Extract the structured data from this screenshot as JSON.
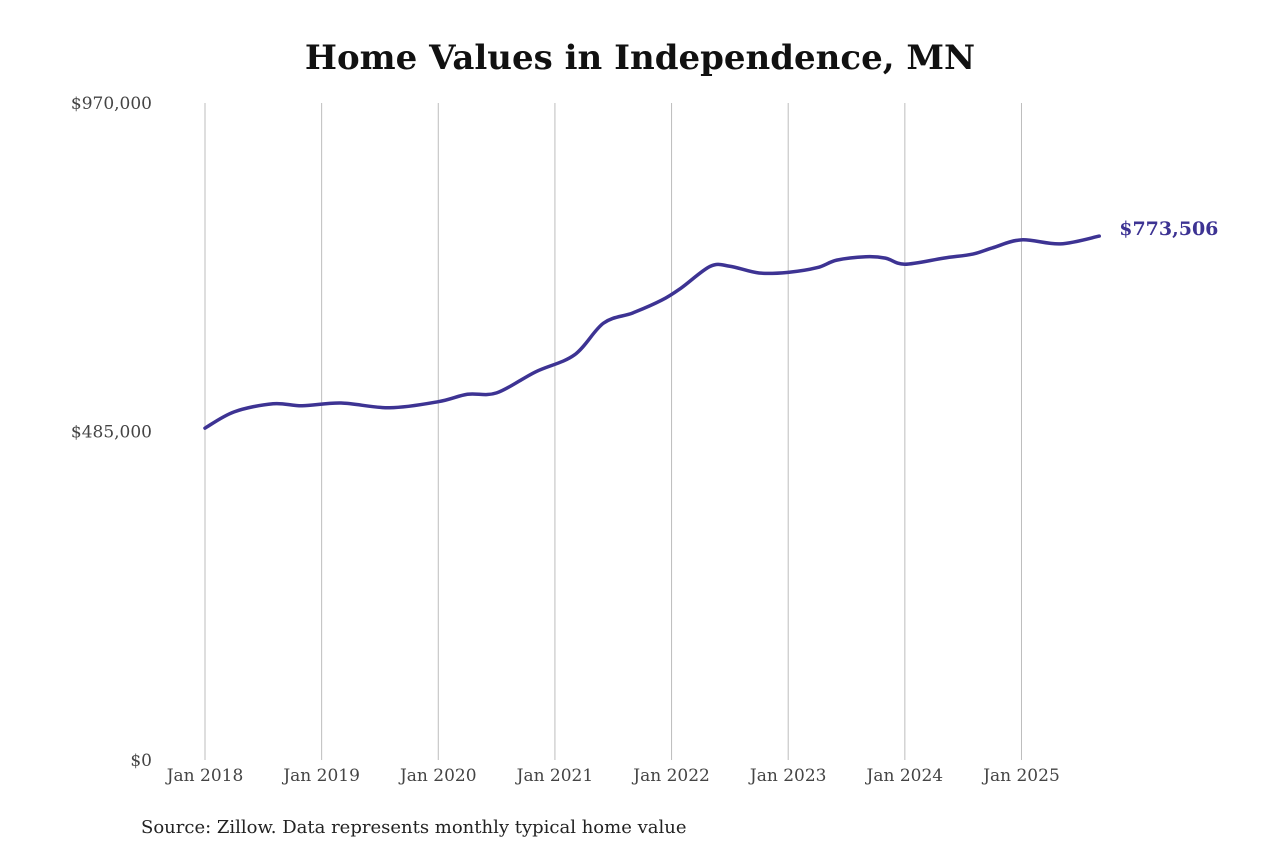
{
  "chart_data": {
    "type": "line",
    "title": "Home Values in Independence, MN",
    "source": "Source: Zillow. Data represents monthly typical home value",
    "xlabel": "",
    "ylabel": "",
    "ylim": [
      0,
      970000
    ],
    "y_ticks": [
      {
        "value": 0,
        "label": "$0"
      },
      {
        "value": 485000,
        "label": "$485,000"
      },
      {
        "value": 970000,
        "label": "$970,000"
      }
    ],
    "x_ticks": [
      {
        "date": "2018-01",
        "label": "Jan 2018"
      },
      {
        "date": "2019-01",
        "label": "Jan 2019"
      },
      {
        "date": "2020-01",
        "label": "Jan 2020"
      },
      {
        "date": "2021-01",
        "label": "Jan 2021"
      },
      {
        "date": "2022-01",
        "label": "Jan 2022"
      },
      {
        "date": "2023-01",
        "label": "Jan 2023"
      },
      {
        "date": "2024-01",
        "label": "Jan 2024"
      },
      {
        "date": "2025-01",
        "label": "Jan 2025"
      }
    ],
    "grid": "vertical",
    "line_color": "#3d3393",
    "end_label": "$773,506",
    "points": [
      {
        "date": "2018-01",
        "value": 490000
      },
      {
        "date": "2018-04",
        "value": 514000
      },
      {
        "date": "2018-08",
        "value": 526000
      },
      {
        "date": "2018-11",
        "value": 523000
      },
      {
        "date": "2019-03",
        "value": 527000
      },
      {
        "date": "2019-08",
        "value": 520000
      },
      {
        "date": "2020-01",
        "value": 529000
      },
      {
        "date": "2020-04",
        "value": 540000
      },
      {
        "date": "2020-07",
        "value": 542000
      },
      {
        "date": "2020-11",
        "value": 573000
      },
      {
        "date": "2021-03",
        "value": 598000
      },
      {
        "date": "2021-06",
        "value": 645000
      },
      {
        "date": "2021-09",
        "value": 660000
      },
      {
        "date": "2021-12",
        "value": 679000
      },
      {
        "date": "2022-02",
        "value": 697000
      },
      {
        "date": "2022-05",
        "value": 729000
      },
      {
        "date": "2022-07",
        "value": 729000
      },
      {
        "date": "2022-10",
        "value": 719000
      },
      {
        "date": "2023-01",
        "value": 720000
      },
      {
        "date": "2023-04",
        "value": 727000
      },
      {
        "date": "2023-06",
        "value": 738000
      },
      {
        "date": "2023-09",
        "value": 743000
      },
      {
        "date": "2023-11",
        "value": 741000
      },
      {
        "date": "2024-01",
        "value": 732000
      },
      {
        "date": "2024-05",
        "value": 741000
      },
      {
        "date": "2024-08",
        "value": 747000
      },
      {
        "date": "2024-10",
        "value": 756000
      },
      {
        "date": "2025-01",
        "value": 768000
      },
      {
        "date": "2025-05",
        "value": 762000
      },
      {
        "date": "2025-09",
        "value": 773506
      }
    ]
  }
}
